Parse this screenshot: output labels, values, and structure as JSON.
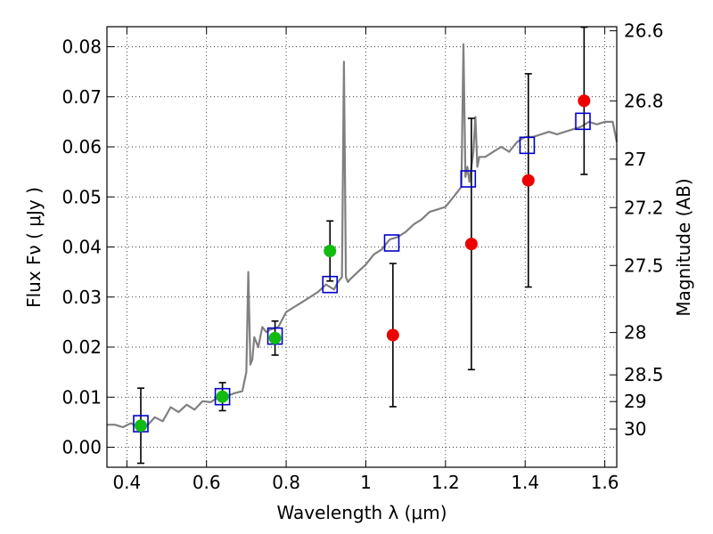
{
  "chart_data": {
    "type": "scatter",
    "xlabel": "Wavelength  λ (μm)",
    "ylabel": "Flux  Fν  ( μJy )",
    "ylabel_right": "Magnitude (AB)",
    "xlim": [
      0.35,
      1.63
    ],
    "ylim": [
      -0.004,
      0.084
    ],
    "x_ticks": [
      0.4,
      0.6,
      0.8,
      1.0,
      1.2,
      1.4,
      1.6
    ],
    "x_tick_labels": [
      "0.4",
      "0.6",
      "0.8",
      "1",
      "1.2",
      "1.4",
      "1.6"
    ],
    "y_ticks": [
      0.0,
      0.01,
      0.02,
      0.03,
      0.04,
      0.05,
      0.06,
      0.07,
      0.08
    ],
    "y_tick_labels": [
      "0.00",
      "0.01",
      "0.02",
      "0.03",
      "0.04",
      "0.05",
      "0.06",
      "0.07",
      "0.08"
    ],
    "right_ticks": [
      {
        "mag": 26.6,
        "label": "26.6"
      },
      {
        "mag": 26.8,
        "label": "26.8"
      },
      {
        "mag": 27.0,
        "label": "27"
      },
      {
        "mag": 27.2,
        "label": "27.2"
      },
      {
        "mag": 27.5,
        "label": "27.5"
      },
      {
        "mag": 28.0,
        "label": "28"
      },
      {
        "mag": 28.5,
        "label": "28.5"
      },
      {
        "mag": 29.0,
        "label": "29"
      },
      {
        "mag": 30.0,
        "label": "30"
      }
    ],
    "grid": true,
    "colors": {
      "template": "#808080",
      "model_box": "#0000cc",
      "detection": "#11bb11",
      "upper_limit": "#ee0000",
      "errorbar": "#000000"
    },
    "template_spectrum": {
      "x": [
        0.35,
        0.37,
        0.39,
        0.41,
        0.43,
        0.45,
        0.47,
        0.49,
        0.51,
        0.53,
        0.55,
        0.57,
        0.59,
        0.61,
        0.63,
        0.65,
        0.67,
        0.69,
        0.7,
        0.705,
        0.71,
        0.715,
        0.72,
        0.73,
        0.74,
        0.75,
        0.76,
        0.78,
        0.8,
        0.82,
        0.84,
        0.86,
        0.88,
        0.9,
        0.91,
        0.92,
        0.93,
        0.94,
        0.945,
        0.95,
        0.955,
        0.96,
        0.98,
        1.0,
        1.02,
        1.04,
        1.06,
        1.08,
        1.1,
        1.12,
        1.14,
        1.16,
        1.18,
        1.2,
        1.22,
        1.24,
        1.245,
        1.25,
        1.255,
        1.26,
        1.27,
        1.275,
        1.28,
        1.285,
        1.29,
        1.3,
        1.32,
        1.34,
        1.36,
        1.38,
        1.4,
        1.42,
        1.44,
        1.46,
        1.48,
        1.5,
        1.52,
        1.54,
        1.56,
        1.58,
        1.6,
        1.62,
        1.63
      ],
      "y": [
        0.0045,
        0.0045,
        0.004,
        0.0048,
        0.004,
        0.0042,
        0.006,
        0.0052,
        0.008,
        0.007,
        0.0085,
        0.0075,
        0.0092,
        0.009,
        0.01,
        0.0102,
        0.0108,
        0.0112,
        0.015,
        0.035,
        0.0165,
        0.0175,
        0.022,
        0.02,
        0.024,
        0.023,
        0.0235,
        0.024,
        0.027,
        0.028,
        0.029,
        0.03,
        0.031,
        0.0325,
        0.032,
        0.0315,
        0.033,
        0.034,
        0.077,
        0.034,
        0.033,
        0.0335,
        0.035,
        0.0365,
        0.0385,
        0.0395,
        0.0415,
        0.042,
        0.043,
        0.0445,
        0.0455,
        0.047,
        0.0475,
        0.048,
        0.05,
        0.052,
        0.0805,
        0.054,
        0.056,
        0.053,
        0.059,
        0.066,
        0.056,
        0.058,
        0.058,
        0.058,
        0.059,
        0.06,
        0.059,
        0.061,
        0.062,
        0.062,
        0.0625,
        0.063,
        0.0625,
        0.063,
        0.0635,
        0.064,
        0.065,
        0.0645,
        0.065,
        0.065,
        0.061
      ]
    },
    "model_points": {
      "x": [
        0.435,
        0.64,
        0.772,
        0.91,
        1.065,
        1.257,
        1.405,
        1.545
      ],
      "y": [
        0.0047,
        0.0101,
        0.0222,
        0.0325,
        0.0408,
        0.0536,
        0.0603,
        0.0651
      ]
    },
    "detections": {
      "x": [
        0.435,
        0.64,
        0.772,
        0.91
      ],
      "y": [
        0.0043,
        0.0101,
        0.0218,
        0.0392
      ],
      "yerr": [
        0.0075,
        0.0028,
        0.0034,
        0.006
      ]
    },
    "upper_limits": {
      "x": [
        1.068,
        1.265,
        1.408,
        1.548
      ],
      "y": [
        0.0224,
        0.0406,
        0.0533,
        0.0692
      ],
      "yerr": [
        0.0143,
        0.0251,
        0.0213,
        0.0147
      ]
    }
  }
}
